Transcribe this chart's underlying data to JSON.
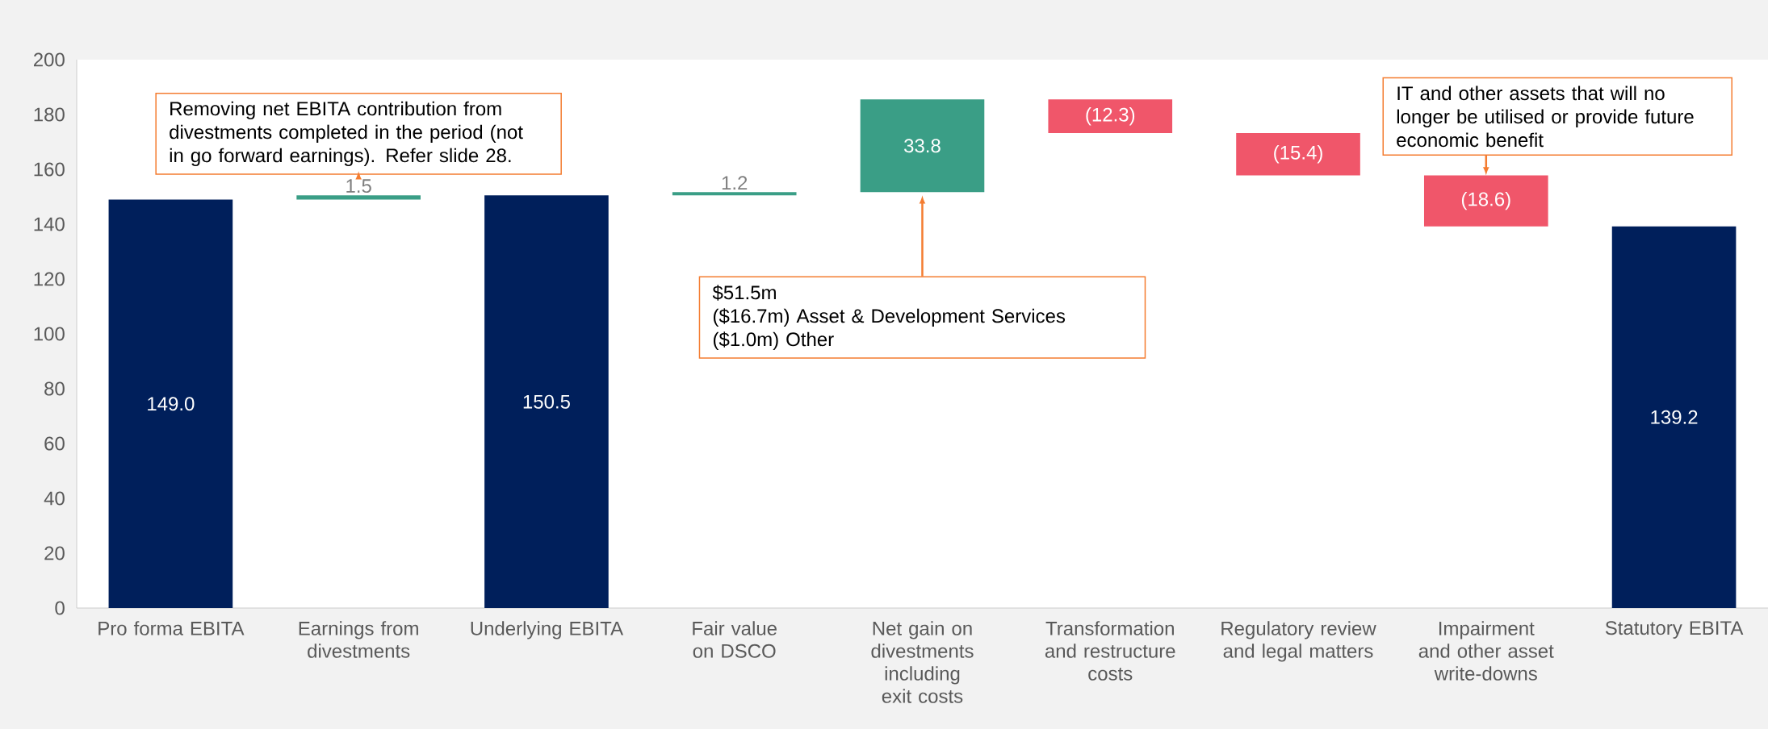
{
  "chart_data": {
    "type": "bar",
    "categories": [
      "Pro forma EBITA",
      "Earnings from divestments",
      "Underlying EBITA",
      "Fair value on DSCO",
      "Net gain on divestments including exit costs",
      "Transformation and restructure costs",
      "Regulatory review and legal matters",
      "Impairment and other asset write-downs",
      "Statutory EBITA"
    ],
    "values": [
      149.0,
      1.5,
      150.5,
      1.2,
      33.8,
      -12.3,
      -15.4,
      -18.6,
      139.2
    ],
    "base": [
      0,
      149.0,
      0,
      150.5,
      151.7,
      185.5,
      173.2,
      157.8,
      0
    ],
    "colors": [
      "#001f5b",
      "#3a9e86",
      "#001f5b",
      "#3a9e86",
      "#3a9e86",
      "#f0566a",
      "#f0566a",
      "#f0566a",
      "#001f5b"
    ],
    "value_labels": [
      "149.0",
      "1.5",
      "150.5",
      "1.2",
      "33.8",
      "(12.3)",
      "(15.4)",
      "(18.6)",
      "139.2"
    ],
    "ylim": [
      0,
      200
    ],
    "yticks": [
      0,
      20,
      40,
      60,
      80,
      100,
      120,
      140,
      160,
      180,
      200
    ],
    "annotations": [
      "Removing net EBITA contribution from divestments completed in the period (not in go forward earnings). Refer slide 28.",
      "$51.5m",
      "($16.7m)   Asset & Development Services",
      "($1.0m)   Other",
      {
        "text": "IT and other assets that will no longer be utilised or provide future economic benefit",
        "x": "Impairment and other asset write-downs",
        "y": 157.8
      }
    ]
  }
}
